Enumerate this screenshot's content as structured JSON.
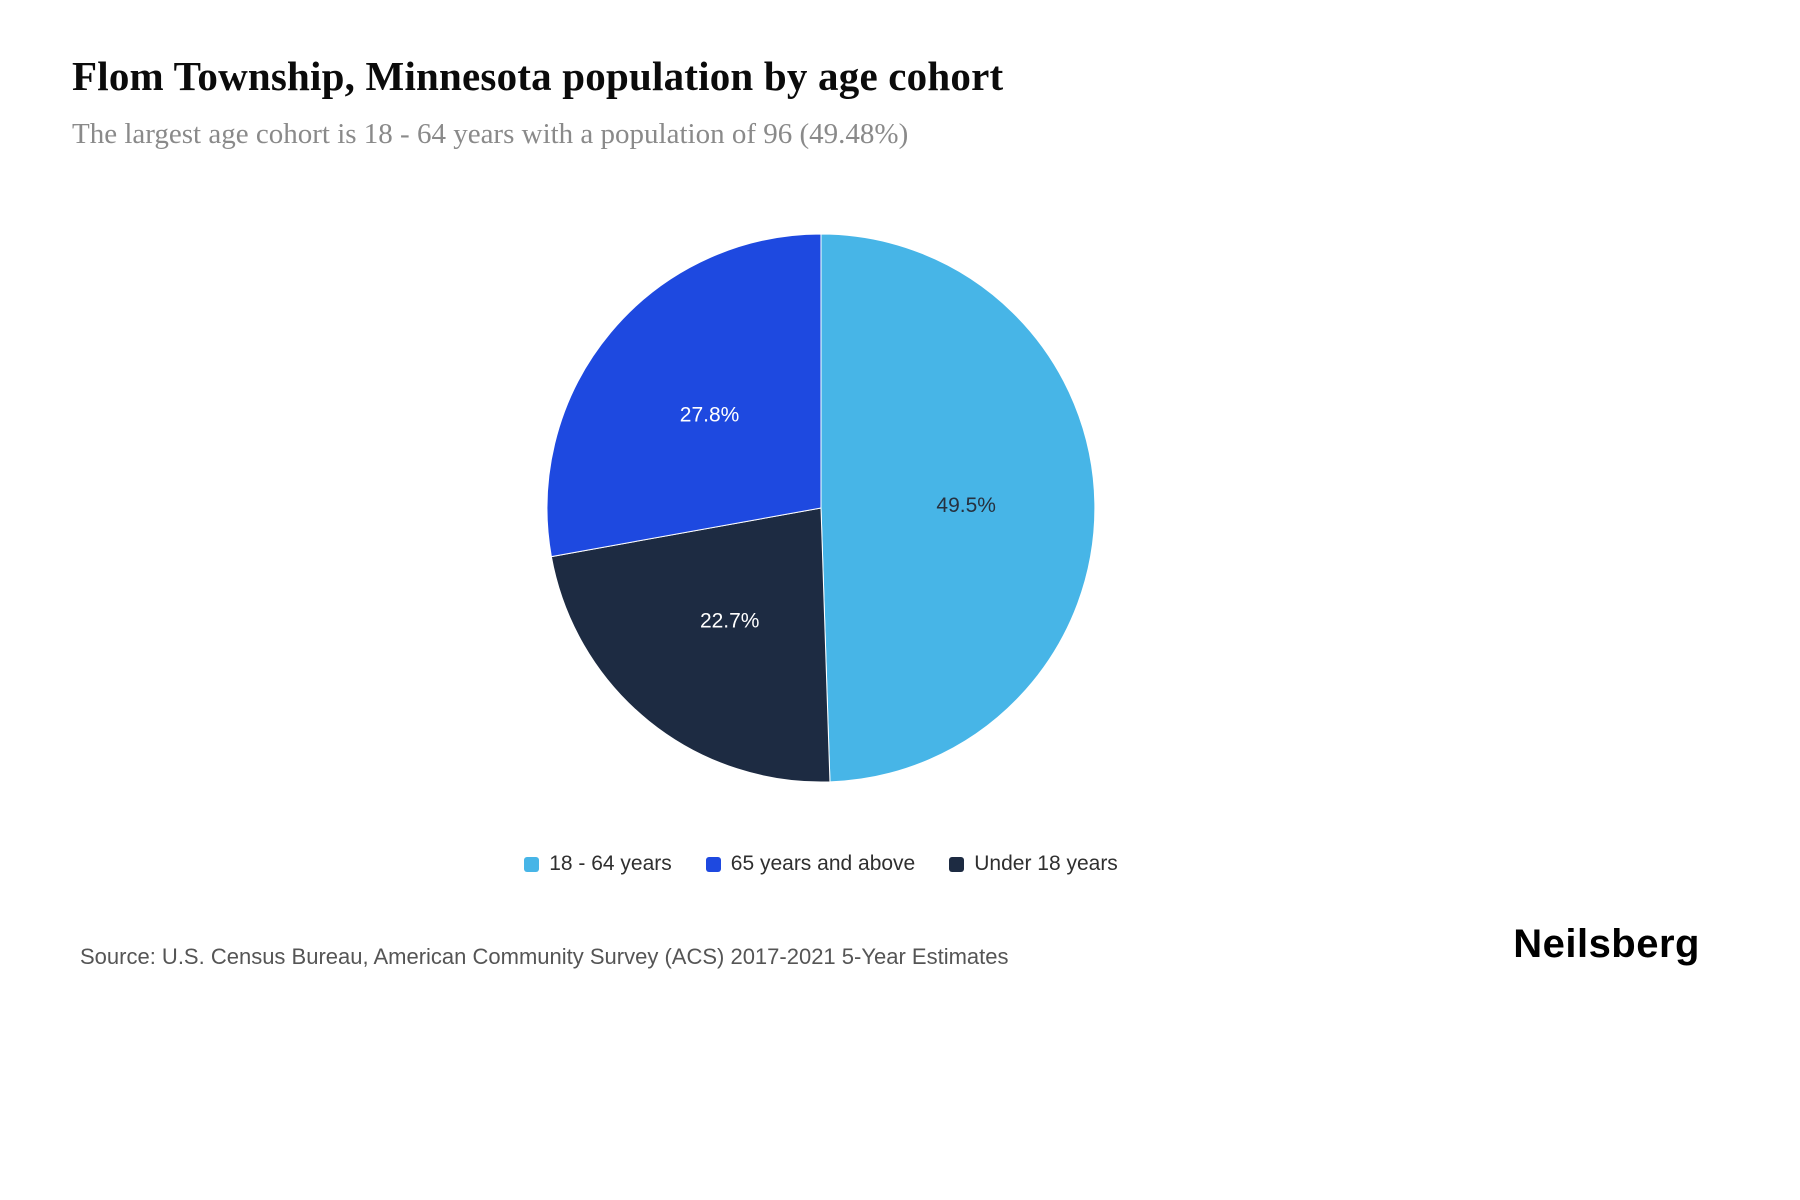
{
  "header": {
    "title": "Flom Township, Minnesota population by age cohort",
    "subtitle": "The largest age cohort is 18 - 64 years with a population of 96 (49.48%)"
  },
  "chart_data": {
    "type": "pie",
    "title": "Flom Township, Minnesota population by age cohort",
    "start_angle_deg": 0,
    "direction": "clockwise",
    "slices": [
      {
        "label": "18 - 64 years",
        "value": 49.48,
        "display_pct": "49.5%",
        "color": "#47b5e7",
        "label_color": "#26313f"
      },
      {
        "label": "Under 18 years",
        "value": 22.68,
        "display_pct": "22.7%",
        "color": "#1d2b42",
        "label_color": "#ffffff"
      },
      {
        "label": "65 years and above",
        "value": 27.84,
        "display_pct": "27.8%",
        "color": "#1e49e0",
        "label_color": "#ffffff"
      }
    ],
    "largest_cohort": {
      "label": "18 - 64 years",
      "population": 96,
      "pct": "49.48%"
    }
  },
  "legend": {
    "items": [
      {
        "label": "18 - 64 years",
        "color": "#47b5e7"
      },
      {
        "label": "65 years and above",
        "color": "#1e49e0"
      },
      {
        "label": "Under 18 years",
        "color": "#1d2b42"
      }
    ]
  },
  "footer": {
    "source": "Source: U.S. Census Bureau, American Community Survey (ACS) 2017-2021 5-Year Estimates",
    "brand": "Neilsberg"
  }
}
